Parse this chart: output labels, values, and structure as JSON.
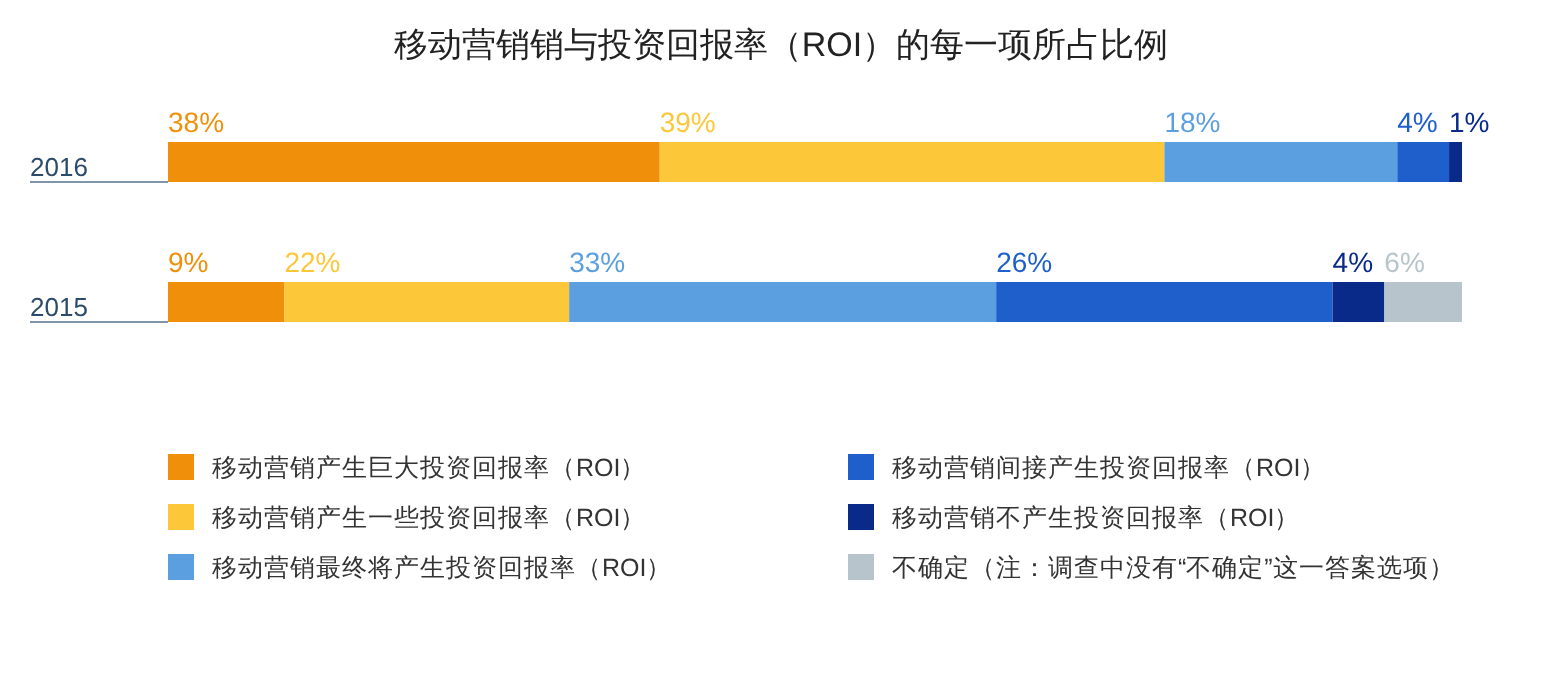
{
  "chart_data": {
    "type": "bar",
    "orientation": "horizontal",
    "stacked": true,
    "title": "移动营销销与投资回报率（ROI）的每一项所占比例",
    "categories": [
      "2016",
      "2015"
    ],
    "series": [
      {
        "name": "移动营销产生巨大投资回报率（ROI）",
        "color": "#f0900a",
        "values": [
          38,
          9
        ],
        "value_labels": [
          "38%",
          "9%"
        ]
      },
      {
        "name": "移动营销产生一些投资回报率（ROI）",
        "color": "#fdc73a",
        "values": [
          39,
          22
        ],
        "value_labels": [
          "39%",
          "22%"
        ]
      },
      {
        "name": "移动营销最终将产生投资回报率（ROI）",
        "color": "#5b9fe0",
        "values": [
          18,
          33
        ],
        "value_labels": [
          "18%",
          "33%"
        ]
      },
      {
        "name": "移动营销间接产生投资回报率（ROI）",
        "color": "#1f5fcc",
        "values": [
          4,
          26
        ],
        "value_labels": [
          "4%",
          "26%"
        ]
      },
      {
        "name": "移动营销不产生投资回报率（ROI）",
        "color": "#0a2a8a",
        "values": [
          1,
          4
        ],
        "value_labels": [
          "1%",
          "4%"
        ]
      },
      {
        "name": "不确定（注：调查中没有“不确定”这一答案选项）",
        "color": "#b8c4cc",
        "values": [
          0,
          6
        ],
        "value_labels": [
          null,
          "6%"
        ]
      }
    ],
    "legend": "bottom"
  }
}
